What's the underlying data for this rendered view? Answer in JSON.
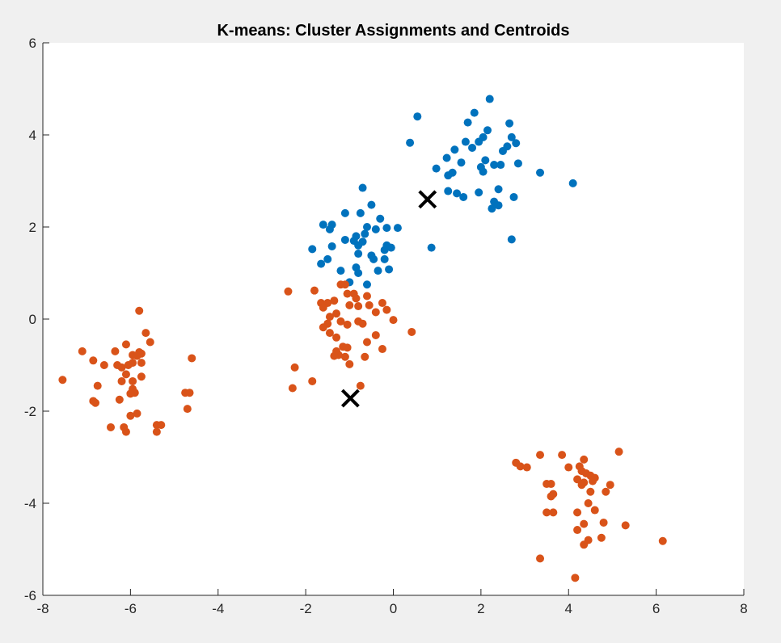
{
  "colors": {
    "figure_background": "#f0f0f0",
    "axes_background": "#ffffff",
    "axis_line": "#262626",
    "centroid_marker": "#000000"
  },
  "chart_data": {
    "type": "scatter",
    "title": "K-means: Cluster Assignments and Centroids",
    "xlabel": "",
    "ylabel": "",
    "xlim": [
      -8,
      8
    ],
    "ylim": [
      -6,
      6
    ],
    "xticks": [
      "-8",
      "-6",
      "-4",
      "-2",
      "0",
      "2",
      "4",
      "6",
      "8"
    ],
    "yticks": [
      "-6",
      "-4",
      "-2",
      "0",
      "2",
      "4",
      "6"
    ],
    "grid": false,
    "legend": "none",
    "series": [
      {
        "color": "#0072bd",
        "marker": "filled-circle",
        "points": [
          [
            0.55,
            4.4
          ],
          [
            0.38,
            3.83
          ],
          [
            2.2,
            4.78
          ],
          [
            1.85,
            4.48
          ],
          [
            1.7,
            4.27
          ],
          [
            2.65,
            4.25
          ],
          [
            2.15,
            4.1
          ],
          [
            1.95,
            3.85
          ],
          [
            2.05,
            3.95
          ],
          [
            2.7,
            3.95
          ],
          [
            1.65,
            3.85
          ],
          [
            1.8,
            3.72
          ],
          [
            1.4,
            3.68
          ],
          [
            2.8,
            3.82
          ],
          [
            2.6,
            3.75
          ],
          [
            2.5,
            3.65
          ],
          [
            1.22,
            3.5
          ],
          [
            1.55,
            3.4
          ],
          [
            2.1,
            3.45
          ],
          [
            2.45,
            3.35
          ],
          [
            2.3,
            3.35
          ],
          [
            2.0,
            3.3
          ],
          [
            0.98,
            3.27
          ],
          [
            1.25,
            3.12
          ],
          [
            1.35,
            3.18
          ],
          [
            2.05,
            3.2
          ],
          [
            2.85,
            3.38
          ],
          [
            3.35,
            3.18
          ],
          [
            4.1,
            2.95
          ],
          [
            1.25,
            2.78
          ],
          [
            1.45,
            2.73
          ],
          [
            1.6,
            2.65
          ],
          [
            1.95,
            2.75
          ],
          [
            2.4,
            2.82
          ],
          [
            2.75,
            2.65
          ],
          [
            2.3,
            2.55
          ],
          [
            2.4,
            2.47
          ],
          [
            2.25,
            2.4
          ],
          [
            2.7,
            1.73
          ],
          [
            0.87,
            1.55
          ],
          [
            -0.7,
            2.85
          ],
          [
            -0.5,
            2.48
          ],
          [
            -0.75,
            2.3
          ],
          [
            -1.1,
            2.3
          ],
          [
            -0.3,
            2.18
          ],
          [
            -0.6,
            2.0
          ],
          [
            -1.6,
            2.05
          ],
          [
            -1.4,
            2.05
          ],
          [
            -1.45,
            1.95
          ],
          [
            -0.85,
            1.8
          ],
          [
            -0.65,
            1.85
          ],
          [
            -0.4,
            1.95
          ],
          [
            -0.9,
            1.7
          ],
          [
            -0.8,
            1.6
          ],
          [
            -0.7,
            1.68
          ],
          [
            -1.1,
            1.72
          ],
          [
            -0.15,
            1.98
          ],
          [
            0.1,
            1.98
          ],
          [
            -0.15,
            1.6
          ],
          [
            -0.2,
            1.5
          ],
          [
            -0.05,
            1.55
          ],
          [
            -1.4,
            1.58
          ],
          [
            -1.85,
            1.52
          ],
          [
            -0.8,
            1.42
          ],
          [
            -0.5,
            1.38
          ],
          [
            -0.45,
            1.3
          ],
          [
            -0.2,
            1.3
          ],
          [
            -1.5,
            1.3
          ],
          [
            -1.65,
            1.2
          ],
          [
            -0.85,
            1.12
          ],
          [
            -0.1,
            1.08
          ],
          [
            -0.35,
            1.05
          ],
          [
            -0.6,
            0.75
          ],
          [
            -1.0,
            0.8
          ],
          [
            -0.8,
            1.0
          ],
          [
            -1.2,
            1.05
          ]
        ]
      },
      {
        "color": "#d95319",
        "marker": "filled-circle",
        "points": [
          [
            -2.4,
            0.6
          ],
          [
            -1.8,
            0.62
          ],
          [
            -1.2,
            0.75
          ],
          [
            -1.1,
            0.75
          ],
          [
            -0.9,
            0.55
          ],
          [
            -0.6,
            0.5
          ],
          [
            -1.05,
            0.55
          ],
          [
            -0.85,
            0.45
          ],
          [
            -1.65,
            0.35
          ],
          [
            -1.5,
            0.35
          ],
          [
            -1.35,
            0.4
          ],
          [
            -1.6,
            0.25
          ],
          [
            -1.0,
            0.3
          ],
          [
            -0.8,
            0.28
          ],
          [
            -0.55,
            0.3
          ],
          [
            -0.25,
            0.35
          ],
          [
            -0.4,
            0.15
          ],
          [
            -0.15,
            0.2
          ],
          [
            -1.45,
            0.05
          ],
          [
            -1.3,
            0.12
          ],
          [
            -1.2,
            -0.05
          ],
          [
            -1.5,
            -0.1
          ],
          [
            -1.6,
            -0.18
          ],
          [
            -1.05,
            -0.12
          ],
          [
            -0.8,
            -0.05
          ],
          [
            -0.7,
            -0.1
          ],
          [
            0.0,
            -0.02
          ],
          [
            -1.45,
            -0.3
          ],
          [
            -1.3,
            -0.4
          ],
          [
            -0.4,
            -0.35
          ],
          [
            0.42,
            -0.28
          ],
          [
            -0.6,
            -0.5
          ],
          [
            -1.15,
            -0.6
          ],
          [
            -1.05,
            -0.62
          ],
          [
            -1.3,
            -0.7
          ],
          [
            -1.25,
            -0.78
          ],
          [
            -1.35,
            -0.8
          ],
          [
            -1.1,
            -0.82
          ],
          [
            -0.65,
            -0.82
          ],
          [
            -0.25,
            -0.65
          ],
          [
            -1.0,
            -0.98
          ],
          [
            -2.25,
            -1.05
          ],
          [
            -1.85,
            -1.35
          ],
          [
            -2.3,
            -1.5
          ],
          [
            -0.75,
            -1.45
          ],
          [
            -5.8,
            0.18
          ],
          [
            -5.65,
            -0.3
          ],
          [
            -5.55,
            -0.5
          ],
          [
            -6.1,
            -0.55
          ],
          [
            -6.35,
            -0.7
          ],
          [
            -5.95,
            -0.78
          ],
          [
            -5.8,
            -0.72
          ],
          [
            -5.85,
            -0.8
          ],
          [
            -5.75,
            -0.75
          ],
          [
            -7.1,
            -0.7
          ],
          [
            -6.85,
            -0.9
          ],
          [
            -6.6,
            -1.0
          ],
          [
            -6.3,
            -1.0
          ],
          [
            -6.2,
            -1.05
          ],
          [
            -6.05,
            -1.0
          ],
          [
            -5.95,
            -0.95
          ],
          [
            -5.75,
            -0.95
          ],
          [
            -6.1,
            -1.2
          ],
          [
            -5.95,
            -1.35
          ],
          [
            -5.75,
            -1.25
          ],
          [
            -4.6,
            -0.85
          ],
          [
            -6.2,
            -1.35
          ],
          [
            -6.75,
            -1.45
          ],
          [
            -7.55,
            -1.32
          ],
          [
            -5.95,
            -1.52
          ],
          [
            -5.9,
            -1.6
          ],
          [
            -6.0,
            -1.62
          ],
          [
            -4.75,
            -1.6
          ],
          [
            -4.65,
            -1.6
          ],
          [
            -6.25,
            -1.75
          ],
          [
            -6.85,
            -1.78
          ],
          [
            -6.8,
            -1.82
          ],
          [
            -5.85,
            -2.05
          ],
          [
            -6.0,
            -2.1
          ],
          [
            -4.7,
            -1.95
          ],
          [
            -5.4,
            -2.3
          ],
          [
            -5.3,
            -2.3
          ],
          [
            -6.15,
            -2.35
          ],
          [
            -6.1,
            -2.45
          ],
          [
            -6.45,
            -2.35
          ],
          [
            -5.4,
            -2.45
          ],
          [
            5.15,
            -2.88
          ],
          [
            3.35,
            -2.95
          ],
          [
            3.85,
            -2.95
          ],
          [
            4.35,
            -3.05
          ],
          [
            2.8,
            -3.12
          ],
          [
            4.25,
            -3.2
          ],
          [
            2.9,
            -3.2
          ],
          [
            3.05,
            -3.22
          ],
          [
            4.0,
            -3.22
          ],
          [
            4.3,
            -3.3
          ],
          [
            4.4,
            -3.35
          ],
          [
            4.5,
            -3.4
          ],
          [
            4.6,
            -3.45
          ],
          [
            4.2,
            -3.48
          ],
          [
            4.35,
            -3.55
          ],
          [
            4.55,
            -3.52
          ],
          [
            4.3,
            -3.6
          ],
          [
            4.95,
            -3.6
          ],
          [
            3.5,
            -3.58
          ],
          [
            3.6,
            -3.58
          ],
          [
            4.85,
            -3.75
          ],
          [
            4.5,
            -3.75
          ],
          [
            3.65,
            -3.8
          ],
          [
            3.6,
            -3.85
          ],
          [
            4.45,
            -4.0
          ],
          [
            4.6,
            -4.15
          ],
          [
            3.5,
            -4.2
          ],
          [
            3.65,
            -4.2
          ],
          [
            4.2,
            -4.2
          ],
          [
            4.8,
            -4.42
          ],
          [
            4.35,
            -4.45
          ],
          [
            5.3,
            -4.48
          ],
          [
            4.2,
            -4.58
          ],
          [
            4.75,
            -4.75
          ],
          [
            4.45,
            -4.8
          ],
          [
            4.35,
            -4.9
          ],
          [
            6.15,
            -4.82
          ],
          [
            3.35,
            -5.2
          ],
          [
            4.15,
            -5.62
          ]
        ]
      },
      {
        "color": "#000000",
        "marker": "x",
        "points": [
          [
            0.78,
            2.6
          ],
          [
            -0.98,
            -1.72
          ]
        ]
      }
    ]
  }
}
